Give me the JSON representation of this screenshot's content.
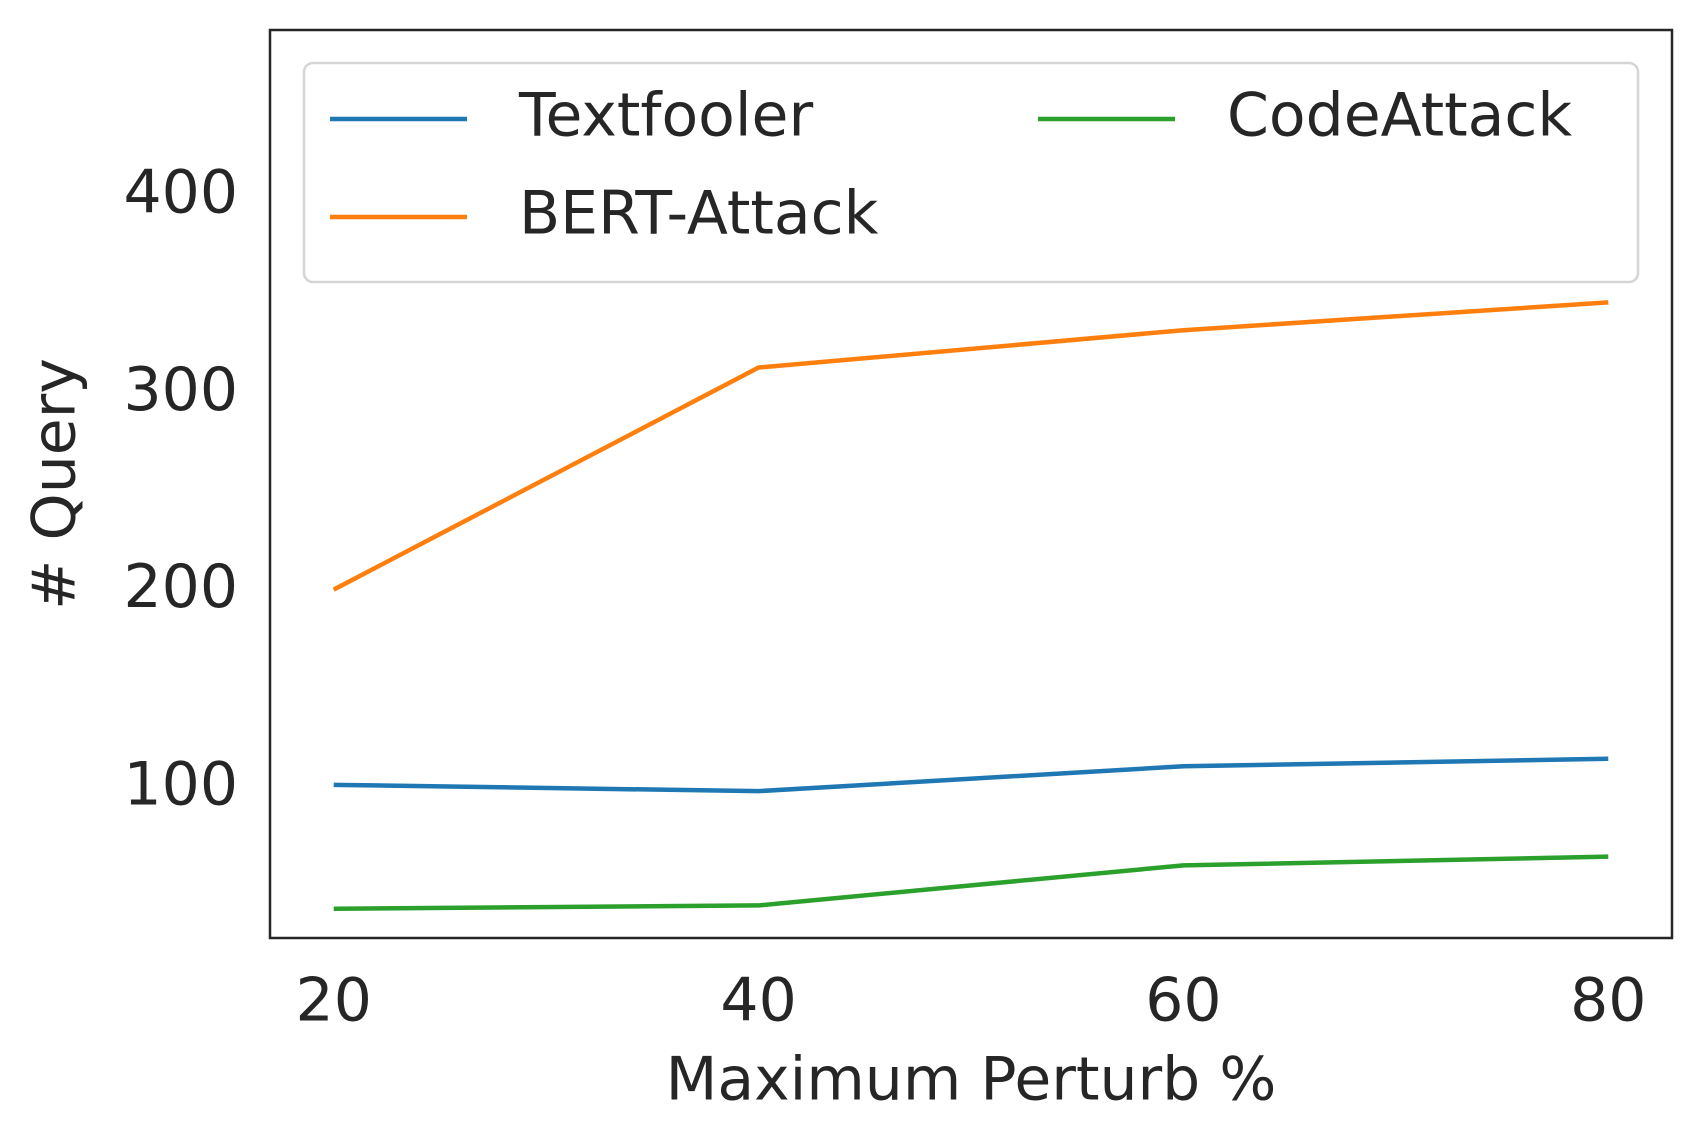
{
  "chart_data": {
    "type": "line",
    "x_label": "Maximum Perturb %",
    "y_label": "# Query",
    "x": [
      20,
      40,
      60,
      80
    ],
    "series": [
      {
        "name": "Textfooler",
        "color": "#1f77b4",
        "values": [
          101.6,
          98.4,
          111,
          114.8
        ]
      },
      {
        "name": "BERT-Attack",
        "color": "#ff7f0e",
        "values": [
          200.5,
          313,
          331.9,
          346
        ]
      },
      {
        "name": "CodeAttack",
        "color": "#2ca02c",
        "values": [
          38.8,
          40.5,
          60.8,
          65.2
        ]
      }
    ],
    "xlim": [
      17,
      83
    ],
    "xticks": [
      20,
      40,
      60,
      80
    ],
    "ylim": [
      24,
      484
    ],
    "yticks": [
      100,
      200,
      300,
      400
    ],
    "grid": false,
    "legend_position": "upper",
    "legend_columns": 2
  }
}
